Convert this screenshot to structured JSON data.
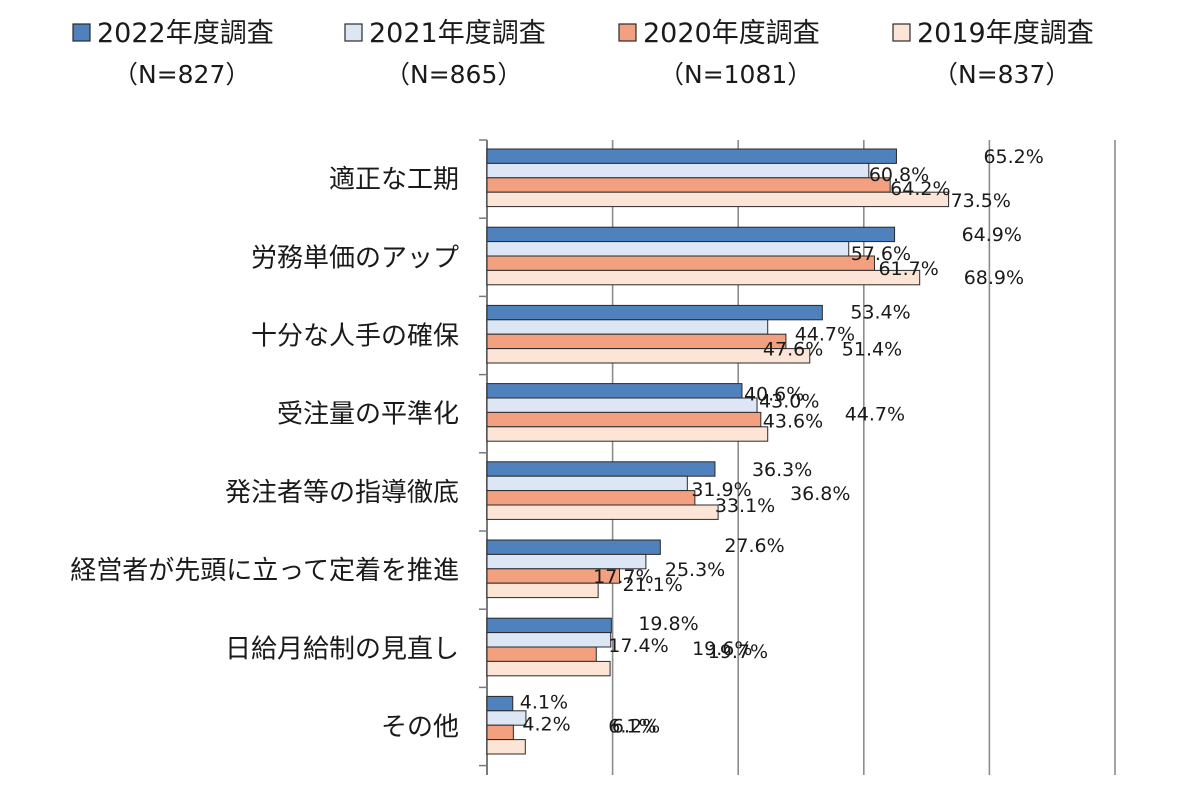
{
  "chart_data": {
    "type": "bar",
    "orientation": "horizontal",
    "title": "",
    "xlabel": "",
    "ylabel": "",
    "xlim": [
      0,
      100
    ],
    "grid": true,
    "legend_position": "top",
    "categories": [
      "適正な工期",
      "労務単価のアップ",
      "十分な人手の確保",
      "受注量の平準化",
      "発注者等の指導徹底",
      "経営者が先頭に立って定着を推進",
      "日給月給制の見直し",
      "その他"
    ],
    "series": [
      {
        "name": "2022年度調査",
        "n_label": "（N=827）",
        "color": "#4f81bd",
        "values": [
          65.2,
          64.9,
          53.4,
          40.6,
          36.3,
          27.6,
          19.8,
          4.1
        ]
      },
      {
        "name": "2021年度調査",
        "n_label": "（N=865）",
        "color": "#dce6f5",
        "values": [
          60.8,
          57.6,
          44.7,
          43.0,
          31.9,
          25.3,
          19.7,
          6.2
        ]
      },
      {
        "name": "2020年度調査",
        "n_label": "（N=1081）",
        "color": "#f2a07f",
        "values": [
          64.2,
          61.7,
          47.6,
          43.6,
          33.1,
          21.1,
          17.4,
          4.2
        ]
      },
      {
        "name": "2019年度調査",
        "n_label": "（N=837）",
        "color": "#fce4d6",
        "values": [
          73.5,
          68.9,
          51.4,
          44.7,
          36.8,
          17.7,
          19.6,
          6.1
        ]
      }
    ],
    "value_labels": [
      [
        "65.2%",
        "64.9%",
        "53.4%",
        "40.6%",
        "36.3%",
        "27.6%",
        "19.8%",
        "4.1%"
      ],
      [
        "60.8%",
        "57.6%",
        "44.7%",
        "43.0%",
        "31.9%",
        "25.3%",
        "19.7%",
        "6.2%"
      ],
      [
        "64.2%",
        "61.7%",
        "47.6%",
        "43.6%",
        "33.1%",
        "21.1%",
        "17.4%",
        "4.2%"
      ],
      [
        "73.5%",
        "68.9%",
        "51.4%",
        "44.7%",
        "36.8%",
        "17.7%",
        "19.6%",
        "6.1%"
      ]
    ]
  }
}
